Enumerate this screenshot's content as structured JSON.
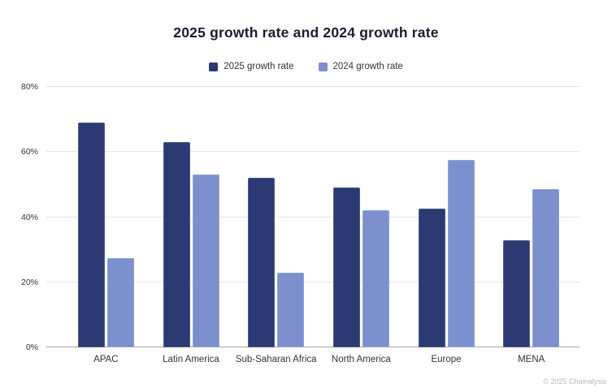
{
  "title": "2025 growth rate and 2024 growth rate",
  "watermark": "© 2025 Chainalysis",
  "colors": {
    "background": "#ffffff",
    "series_2025": "#2b3a72",
    "series_2024": "#7b90cc",
    "gridline": "#e4e4e8",
    "axis_line": "#a9a9b0",
    "title_text": "#1c1c30",
    "label_text": "#33333a",
    "watermark_text": "#b9b9c0"
  },
  "chart_data": {
    "type": "bar",
    "title": "2025 growth rate and 2024 growth rate",
    "categories": [
      "APAC",
      "Latin America",
      "Sub-Saharan Africa",
      "North America",
      "Europe",
      "MENA"
    ],
    "series": [
      {
        "name": "2025 growth rate",
        "color": "#2b3a72",
        "values": [
          69,
          63,
          52,
          49,
          42.5,
          33
        ]
      },
      {
        "name": "2024 growth rate",
        "color": "#7b90cc",
        "values": [
          27.5,
          53,
          23,
          42,
          57.5,
          48.5
        ]
      }
    ],
    "xlabel": "",
    "ylabel": "",
    "ylim": [
      0,
      80
    ],
    "yticks": [
      0,
      20,
      40,
      60,
      80
    ],
    "ytick_suffix": "%",
    "grid": true,
    "legend_position": "top"
  }
}
